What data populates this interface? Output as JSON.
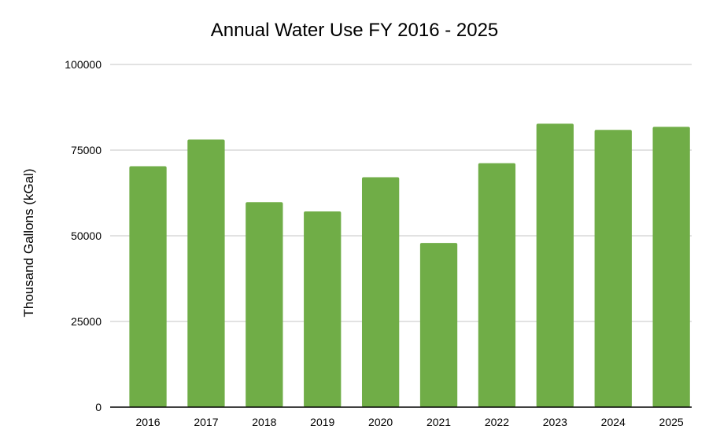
{
  "chart_data": {
    "type": "bar",
    "title": "Annual Water Use FY 2016 - 2025",
    "xlabel": "",
    "ylabel": "Thousand Gallons (kGal)",
    "categories": [
      "2016",
      "2017",
      "2018",
      "2019",
      "2020",
      "2021",
      "2022",
      "2023",
      "2024",
      "2025"
    ],
    "values": [
      70300,
      78100,
      59800,
      57100,
      67100,
      47900,
      71200,
      82700,
      80900,
      81800
    ],
    "ylim": [
      0,
      100000
    ],
    "yticks": [
      "0",
      "25000",
      "50000",
      "75000",
      "100000"
    ],
    "grid": true,
    "legend": "none",
    "bar_color": "#70ad47",
    "grid_color": "#d9d9d9",
    "axis_color": "#000000"
  }
}
